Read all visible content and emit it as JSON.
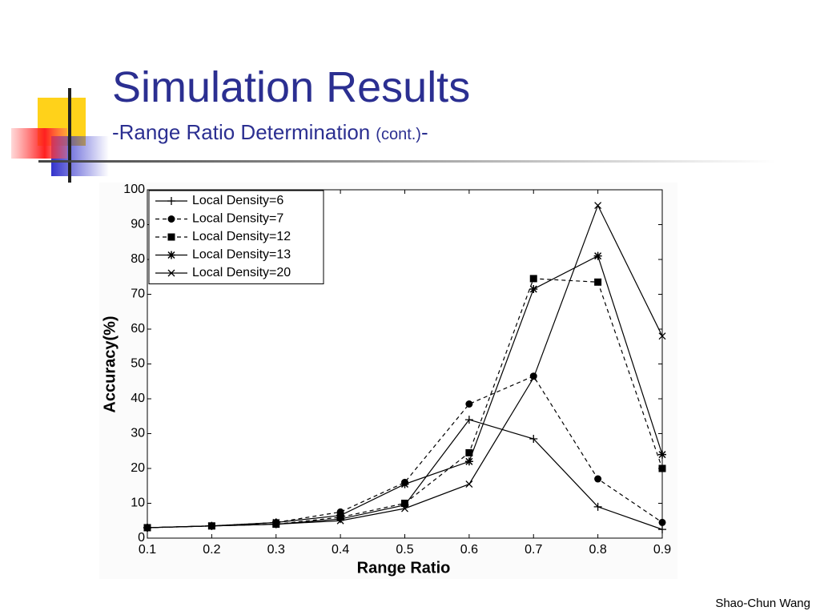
{
  "slide": {
    "title": "Simulation Results",
    "subtitle": {
      "main": "-Range Ratio Determination",
      "note": "(cont.)",
      "end": "-"
    },
    "author": "Shao-Chun Wang"
  },
  "chart_data": {
    "type": "line",
    "x_label": "Range Ratio",
    "y_label": "Accuracy(%)",
    "x": [
      0.1,
      0.2,
      0.3,
      0.4,
      0.5,
      0.6,
      0.7,
      0.8,
      0.9
    ],
    "xlim": [
      0.1,
      0.9
    ],
    "xticks": [
      0.1,
      0.2,
      0.3,
      0.4,
      0.5,
      0.6,
      0.7,
      0.8,
      0.9
    ],
    "ylim": [
      0,
      100
    ],
    "yticks": [
      0,
      10,
      20,
      30,
      40,
      50,
      60,
      70,
      80,
      90,
      100
    ],
    "legend": "top-left",
    "series": [
      {
        "name": "Local Density=6",
        "color": "#000000",
        "linestyle": "solid",
        "marker": "plus",
        "values": [
          3,
          3.5,
          4,
          5.5,
          9.5,
          34,
          28.5,
          9,
          2.5
        ]
      },
      {
        "name": "Local Density=7",
        "color": "#000000",
        "linestyle": "dashed",
        "marker": "circle",
        "values": [
          3,
          3.5,
          4.5,
          7.5,
          16,
          38.5,
          46.5,
          17,
          4.5
        ]
      },
      {
        "name": "Local Density=12",
        "color": "#000000",
        "linestyle": "dashed",
        "marker": "square",
        "values": [
          3,
          3.5,
          4,
          6,
          10,
          24.5,
          74.5,
          73.5,
          20
        ]
      },
      {
        "name": "Local Density=13",
        "color": "#000000",
        "linestyle": "solid",
        "marker": "star",
        "values": [
          3,
          3.5,
          4.5,
          6.5,
          15.5,
          22,
          71.5,
          81,
          24
        ]
      },
      {
        "name": "Local Density=20",
        "color": "#000000",
        "linestyle": "solid",
        "marker": "x",
        "values": [
          3,
          3.5,
          4,
          5,
          8.5,
          15.5,
          46,
          95.5,
          58
        ]
      }
    ]
  }
}
